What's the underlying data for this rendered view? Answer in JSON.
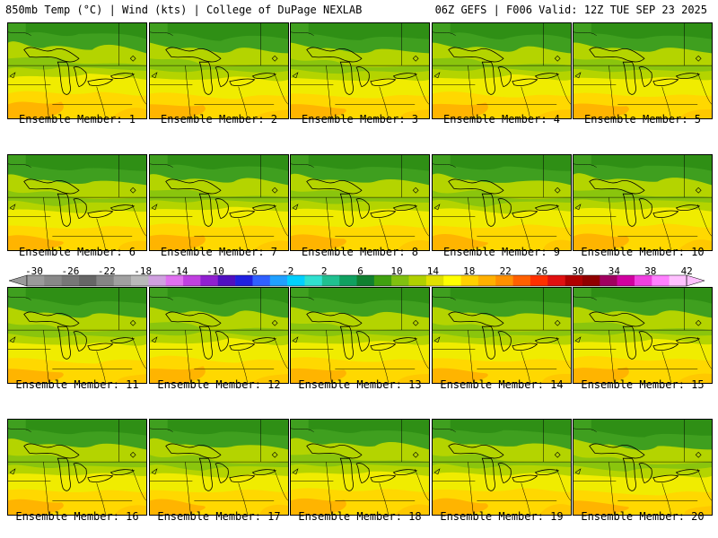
{
  "header": {
    "left": "850mb Temp (°C) | Wind (kts) | College of DuPage NEXLAB",
    "right": "06Z GEFS | F006 Valid: 12Z TUE SEP 23 2025"
  },
  "colorbar": {
    "labels": [
      "-30",
      "-26",
      "-22",
      "-18",
      "-14",
      "-10",
      "-6",
      "-2",
      "2",
      "6",
      "10",
      "14",
      "18",
      "22",
      "26",
      "30",
      "34",
      "38",
      "42"
    ],
    "colors": [
      "#9a9a9a",
      "#888888",
      "#777777",
      "#666666",
      "#858585",
      "#a0a0a0",
      "#b9b9b9",
      "#d0a0e0",
      "#e070f0",
      "#c040e0",
      "#9020d0",
      "#5010c0",
      "#2020e0",
      "#3060ff",
      "#20a0ff",
      "#00d0ff",
      "#30e0d0",
      "#20c090",
      "#10a060",
      "#108030",
      "#40a010",
      "#80c010",
      "#b0d000",
      "#e0e000",
      "#ffff00",
      "#ffd000",
      "#ffb000",
      "#ff9000",
      "#ff6000",
      "#ff3000",
      "#e01010",
      "#b00000",
      "#900000",
      "#a00060",
      "#d000a0",
      "#f040e0",
      "#ff80ff",
      "#ffc0ff"
    ]
  },
  "members": [
    "Ensemble Member: 1",
    "Ensemble Member: 2",
    "Ensemble Member: 3",
    "Ensemble Member: 4",
    "Ensemble Member: 5",
    "Ensemble Member: 6",
    "Ensemble Member: 7",
    "Ensemble Member: 8",
    "Ensemble Member: 9",
    "Ensemble Member: 10",
    "Ensemble Member: 11",
    "Ensemble Member: 12",
    "Ensemble Member: 13",
    "Ensemble Member: 14",
    "Ensemble Member: 15",
    "Ensemble Member: 16",
    "Ensemble Member: 17",
    "Ensemble Member: 18",
    "Ensemble Member: 19",
    "Ensemble Member: 20"
  ]
}
